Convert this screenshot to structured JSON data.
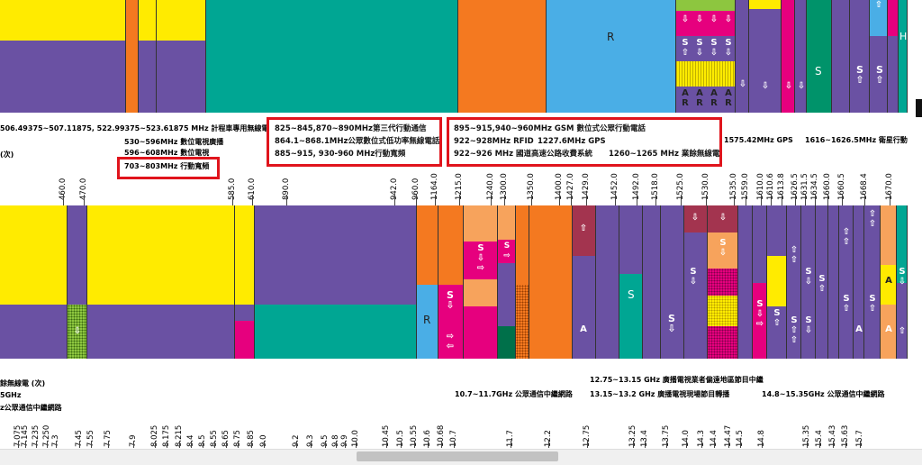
{
  "band1_labels": {
    "mhz_taxi": "506.49375~507.11875, 522.99375~523.61875 MHz 計程車專用無線電",
    "dtv": "530~596MHz 數位電視廣播",
    "dtv2": "596~608MHz 數位電視",
    "row3_left": "(次)",
    "box1": "703~803MHz 行動寬頻",
    "box2_l1": "825~845,870~890MHz第三代行動通信",
    "box2_l2": "864.1~868.1MHz公眾數位式低功率無線電話",
    "box2_l3": "885~915, 930-960 MHz行動寬頻",
    "box3_l1": "895~915,940~960MHz GSM 數位式公眾行動電話",
    "box3_l2": "922~928MHz RFID",
    "box3_l2b": "1227.6MHz GPS",
    "box3_l3": "922~926 MHz 國道高速公路收費系統",
    "box3_l3b": "1260~1265 MHz 業餘無線電",
    "gps": "1575.42MHz GPS",
    "sat": "1616~1626.5MHz 衛星行動"
  },
  "band1_ticks": [
    "460.0",
    "470.0",
    "585.0",
    "610.0",
    "890.0",
    "942.0",
    "960.0",
    "1164.0",
    "1215.0",
    "1240.0",
    "1300.0",
    "1350.0",
    "1400.0",
    "1427.0",
    "1429.0",
    "1452.0",
    "1492.0",
    "1518.0",
    "1525.0",
    "1530.0",
    "1535.0",
    "1559.0",
    "1610.0",
    "1610.6",
    "1613.8",
    "1626.5",
    "1631.5",
    "1634.5",
    "1660.0",
    "1660.5",
    "1668.4",
    "1670.0"
  ],
  "band2_labels": {
    "left1": "餘無線電 (次)",
    "left2": "5GHz",
    "left3": "z公眾通信中繼網路",
    "mid": "10.7~11.7GHz 公眾通信中繼網路",
    "r1": "12.75~13.15 GHz 廣播電視業者偏遠地區節目中繼",
    "r2": "13.15~13.2 GHz 廣播電視現場節目轉播",
    "r3": "14.8~15.35GHz 公眾通信中繼網路"
  },
  "band2_ticks": [
    "7.075",
    "7.145",
    "7.235",
    "7.250",
    "7.3",
    "7.45",
    "7.55",
    "7.75",
    "7.9",
    "8.025",
    "8.175",
    "8.215",
    "8.4",
    "8.5",
    "8.55",
    "8.65",
    "8.75",
    "8.85",
    "9.0",
    "9.2",
    "9.3",
    "9.5",
    "9.8",
    "9.9",
    "10.0",
    "10.45",
    "10.5",
    "10.55",
    "10.6",
    "10.68",
    "10.7",
    "11.7",
    "12.2",
    "12.75",
    "13.25",
    "13.4",
    "13.75",
    "14.0",
    "14.3",
    "14.4",
    "14.47",
    "14.5",
    "14.8",
    "15.35",
    "15.4",
    "15.43",
    "15.63",
    "15.7"
  ],
  "service_letters": {
    "R": "R",
    "S": "S",
    "A": "A",
    "H": "H"
  },
  "colors": {
    "yellow": "#ffeb00",
    "purple": "#6a51a3",
    "teal": "#00a693",
    "orange": "#f47920",
    "blue": "#4aaee6",
    "magenta": "#e6007e",
    "red_box": "#e0141c"
  }
}
